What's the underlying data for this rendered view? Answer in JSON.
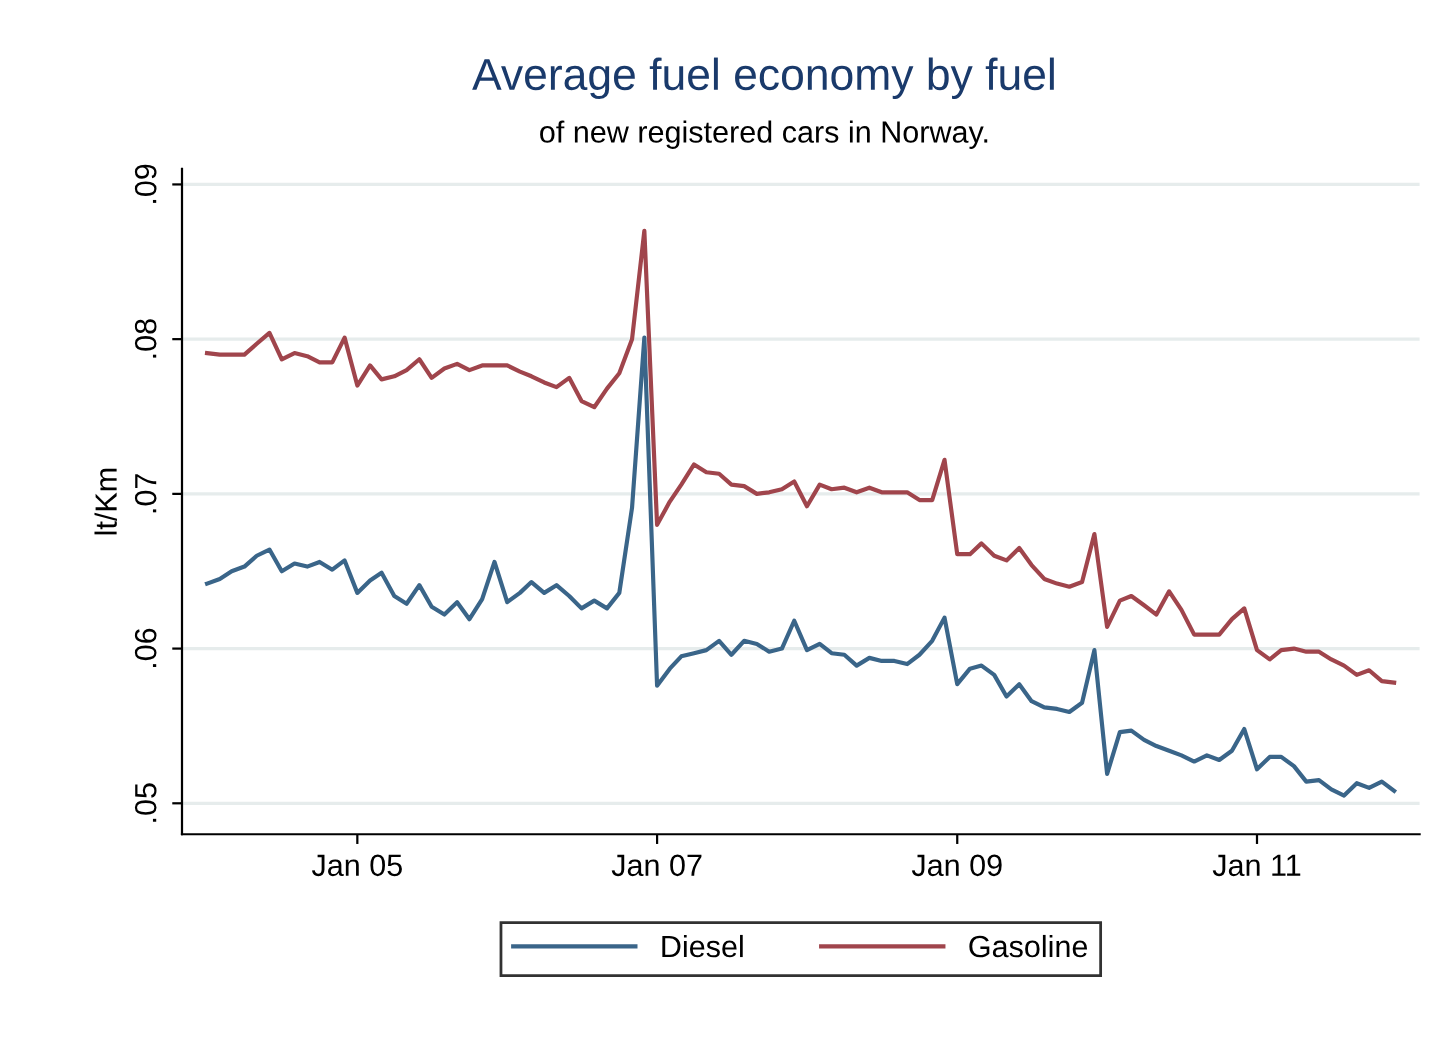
{
  "chart_data": {
    "type": "line",
    "title": "Average fuel economy by fuel",
    "subtitle": "of new registered cars in Norway.",
    "ylabel": "lt/Km",
    "x": [
      "2004-01",
      "2004-02",
      "2004-03",
      "2004-04",
      "2004-05",
      "2004-06",
      "2004-07",
      "2004-08",
      "2004-09",
      "2004-10",
      "2004-11",
      "2004-12",
      "2005-01",
      "2005-02",
      "2005-03",
      "2005-04",
      "2005-05",
      "2005-06",
      "2005-07",
      "2005-08",
      "2005-09",
      "2005-10",
      "2005-11",
      "2005-12",
      "2006-01",
      "2006-02",
      "2006-03",
      "2006-04",
      "2006-05",
      "2006-06",
      "2006-07",
      "2006-08",
      "2006-09",
      "2006-10",
      "2006-11",
      "2006-12",
      "2007-01",
      "2007-02",
      "2007-03",
      "2007-04",
      "2007-05",
      "2007-06",
      "2007-07",
      "2007-08",
      "2007-09",
      "2007-10",
      "2007-11",
      "2007-12",
      "2008-01",
      "2008-02",
      "2008-03",
      "2008-04",
      "2008-05",
      "2008-06",
      "2008-07",
      "2008-08",
      "2008-09",
      "2008-10",
      "2008-11",
      "2008-12",
      "2009-01",
      "2009-02",
      "2009-03",
      "2009-04",
      "2009-05",
      "2009-06",
      "2009-07",
      "2009-08",
      "2009-09",
      "2009-10",
      "2009-11",
      "2009-12",
      "2010-01",
      "2010-02",
      "2010-03",
      "2010-04",
      "2010-05",
      "2010-06",
      "2010-07",
      "2010-08",
      "2010-09",
      "2010-10",
      "2010-11",
      "2010-12",
      "2011-01",
      "2011-02",
      "2011-03",
      "2011-04",
      "2011-05",
      "2011-06",
      "2011-07",
      "2011-08",
      "2011-09",
      "2011-10",
      "2011-11",
      "2011-12"
    ],
    "series": [
      {
        "name": "Diesel",
        "color": "#3a6589",
        "values": [
          0.0642,
          0.0645,
          0.065,
          0.0653,
          0.066,
          0.0664,
          0.065,
          0.0655,
          0.0653,
          0.0656,
          0.0651,
          0.0657,
          0.0636,
          0.0644,
          0.0649,
          0.0634,
          0.0629,
          0.0641,
          0.0627,
          0.0622,
          0.063,
          0.0619,
          0.0632,
          0.0656,
          0.063,
          0.0636,
          0.0643,
          0.0636,
          0.0641,
          0.0634,
          0.0626,
          0.0631,
          0.0626,
          0.0636,
          0.0691,
          0.0801,
          0.0576,
          0.0587,
          0.0595,
          0.0597,
          0.0599,
          0.0605,
          0.0596,
          0.0605,
          0.0603,
          0.0598,
          0.06,
          0.0618,
          0.0599,
          0.0603,
          0.0597,
          0.0596,
          0.0589,
          0.0594,
          0.0592,
          0.0592,
          0.059,
          0.0596,
          0.0605,
          0.062,
          0.0577,
          0.0587,
          0.0589,
          0.0583,
          0.0569,
          0.0577,
          0.0566,
          0.0562,
          0.0561,
          0.0559,
          0.0565,
          0.0599,
          0.0519,
          0.0546,
          0.0547,
          0.0541,
          0.0537,
          0.0534,
          0.0531,
          0.0527,
          0.0531,
          0.0528,
          0.0534,
          0.0548,
          0.0522,
          0.053,
          0.053,
          0.0524,
          0.0514,
          0.0515,
          0.0509,
          0.0505,
          0.0513,
          0.051,
          0.0514,
          0.0508
        ]
      },
      {
        "name": "Gasoline",
        "color": "#a0454c",
        "values": [
          0.0791,
          0.079,
          0.079,
          0.079,
          0.0797,
          0.0804,
          0.0787,
          0.0791,
          0.0789,
          0.0785,
          0.0785,
          0.0801,
          0.077,
          0.0783,
          0.0774,
          0.0776,
          0.078,
          0.0787,
          0.0775,
          0.0781,
          0.0784,
          0.078,
          0.0783,
          0.0783,
          0.0783,
          0.0779,
          0.0776,
          0.0772,
          0.0769,
          0.0775,
          0.076,
          0.0756,
          0.0768,
          0.0778,
          0.08,
          0.087,
          0.068,
          0.0695,
          0.0706,
          0.0719,
          0.0714,
          0.0713,
          0.0706,
          0.0705,
          0.07,
          0.0701,
          0.0703,
          0.0708,
          0.0692,
          0.0706,
          0.0703,
          0.0704,
          0.0701,
          0.0704,
          0.0701,
          0.0701,
          0.0701,
          0.0696,
          0.0696,
          0.0722,
          0.0661,
          0.0661,
          0.0668,
          0.066,
          0.0657,
          0.0665,
          0.0654,
          0.0645,
          0.0642,
          0.064,
          0.0643,
          0.0674,
          0.0614,
          0.0631,
          0.0634,
          0.0628,
          0.0622,
          0.0637,
          0.0625,
          0.0609,
          0.0609,
          0.0609,
          0.0619,
          0.0626,
          0.0599,
          0.0593,
          0.0599,
          0.06,
          0.0598,
          0.0598,
          0.0593,
          0.0589,
          0.0583,
          0.0586,
          0.0579,
          0.0578
        ]
      }
    ],
    "xlim": [
      "2003-11",
      "2012-02"
    ],
    "xticks": [
      {
        "value": "2005-01",
        "label": "Jan 05"
      },
      {
        "value": "2007-01",
        "label": "Jan 07"
      },
      {
        "value": "2009-01",
        "label": "Jan 09"
      },
      {
        "value": "2011-01",
        "label": "Jan 11"
      }
    ],
    "ylim": [
      0.048,
      0.091
    ],
    "yticks": [
      {
        "value": 0.05,
        "label": ".05"
      },
      {
        "value": 0.06,
        "label": ".06"
      },
      {
        "value": 0.07,
        "label": ".07"
      },
      {
        "value": 0.08,
        "label": ".08"
      },
      {
        "value": 0.09,
        "label": ".09"
      }
    ],
    "grid": "y",
    "legend": "bottom",
    "marker": "none",
    "line_style": "solid"
  }
}
